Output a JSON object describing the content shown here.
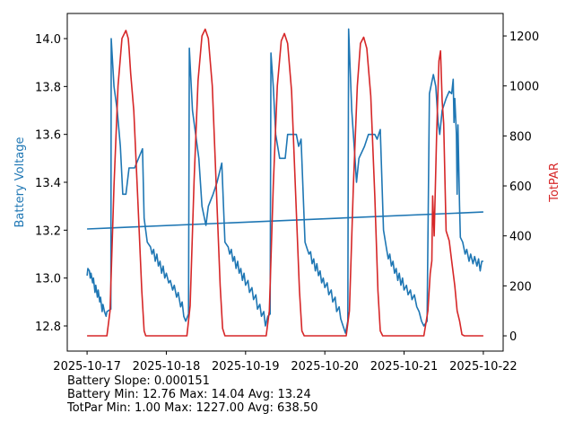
{
  "chart_data": {
    "type": "line",
    "xlabel": "",
    "x_tick_labels": [
      "2025-10-17",
      "2025-10-18",
      "2025-10-19",
      "2025-10-20",
      "2025-10-21",
      "2025-10-22"
    ],
    "x_unit": "days since 2025-10-17",
    "xlim": [
      -0.25,
      5.25
    ],
    "left_axis": {
      "label": "Battery Voltage",
      "color": "#1f77b4",
      "ylim": [
        12.695,
        14.105
      ],
      "ticks": [
        12.8,
        13.0,
        13.2,
        13.4,
        13.6,
        13.8,
        14.0
      ],
      "tick_labels": [
        "12.8",
        "13.0",
        "13.2",
        "13.4",
        "13.6",
        "13.8",
        "14.0"
      ]
    },
    "right_axis": {
      "label": "TotPAR",
      "color": "#d62728",
      "ylim": [
        -61,
        1290
      ],
      "ticks": [
        0,
        200,
        400,
        600,
        800,
        1000,
        1200
      ],
      "tick_labels": [
        "0",
        "200",
        "400",
        "600",
        "800",
        "1000",
        "1200"
      ]
    },
    "series": [
      {
        "name": "Battery Voltage",
        "axis": "left",
        "color": "#1f77b4",
        "points": [
          [
            0,
            13.01
          ],
          [
            0.01,
            13.04
          ],
          [
            0.03,
            13.03
          ],
          [
            0.04,
            13.0
          ],
          [
            0.05,
            13.02
          ],
          [
            0.07,
            12.98
          ],
          [
            0.08,
            13.0
          ],
          [
            0.1,
            12.94
          ],
          [
            0.11,
            12.97
          ],
          [
            0.13,
            12.92
          ],
          [
            0.14,
            12.95
          ],
          [
            0.16,
            12.9
          ],
          [
            0.17,
            12.92
          ],
          [
            0.19,
            12.86
          ],
          [
            0.2,
            12.89
          ],
          [
            0.22,
            12.86
          ],
          [
            0.24,
            12.84
          ],
          [
            0.25,
            12.86
          ],
          [
            0.3,
            12.87
          ],
          [
            0.305,
            14.0
          ],
          [
            0.34,
            13.8
          ],
          [
            0.38,
            13.7
          ],
          [
            0.42,
            13.55
          ],
          [
            0.45,
            13.35
          ],
          [
            0.49,
            13.35
          ],
          [
            0.53,
            13.46
          ],
          [
            0.6,
            13.46
          ],
          [
            0.65,
            13.5
          ],
          [
            0.7,
            13.54
          ],
          [
            0.72,
            13.25
          ],
          [
            0.76,
            13.15
          ],
          [
            0.8,
            13.13
          ],
          [
            0.82,
            13.1
          ],
          [
            0.84,
            13.12
          ],
          [
            0.86,
            13.07
          ],
          [
            0.88,
            13.1
          ],
          [
            0.9,
            13.05
          ],
          [
            0.92,
            13.07
          ],
          [
            0.94,
            13.02
          ],
          [
            0.96,
            13.05
          ],
          [
            0.98,
            13.0
          ],
          [
            1.0,
            13.02
          ],
          [
            1.03,
            12.98
          ],
          [
            1.05,
            12.99
          ],
          [
            1.08,
            12.95
          ],
          [
            1.1,
            12.97
          ],
          [
            1.13,
            12.92
          ],
          [
            1.15,
            12.94
          ],
          [
            1.18,
            12.88
          ],
          [
            1.2,
            12.9
          ],
          [
            1.22,
            12.84
          ],
          [
            1.245,
            12.82
          ],
          [
            1.28,
            12.85
          ],
          [
            1.29,
            13.96
          ],
          [
            1.33,
            13.7
          ],
          [
            1.41,
            13.5
          ],
          [
            1.45,
            13.3
          ],
          [
            1.5,
            13.22
          ],
          [
            1.53,
            13.3
          ],
          [
            1.59,
            13.35
          ],
          [
            1.64,
            13.4
          ],
          [
            1.7,
            13.48
          ],
          [
            1.74,
            13.15
          ],
          [
            1.78,
            13.13
          ],
          [
            1.8,
            13.1
          ],
          [
            1.82,
            13.12
          ],
          [
            1.84,
            13.07
          ],
          [
            1.86,
            13.09
          ],
          [
            1.88,
            13.04
          ],
          [
            1.9,
            13.07
          ],
          [
            1.92,
            13.02
          ],
          [
            1.94,
            13.04
          ],
          [
            1.96,
            12.99
          ],
          [
            1.98,
            13.02
          ],
          [
            2.0,
            12.97
          ],
          [
            2.03,
            12.99
          ],
          [
            2.05,
            12.94
          ],
          [
            2.08,
            12.96
          ],
          [
            2.1,
            12.91
          ],
          [
            2.13,
            12.93
          ],
          [
            2.15,
            12.87
          ],
          [
            2.18,
            12.89
          ],
          [
            2.2,
            12.84
          ],
          [
            2.23,
            12.86
          ],
          [
            2.25,
            12.8
          ],
          [
            2.28,
            12.84
          ],
          [
            2.31,
            12.85
          ],
          [
            2.32,
            13.94
          ],
          [
            2.35,
            13.8
          ],
          [
            2.38,
            13.6
          ],
          [
            2.43,
            13.5
          ],
          [
            2.5,
            13.5
          ],
          [
            2.53,
            13.6
          ],
          [
            2.64,
            13.6
          ],
          [
            2.67,
            13.55
          ],
          [
            2.7,
            13.58
          ],
          [
            2.75,
            13.15
          ],
          [
            2.78,
            13.12
          ],
          [
            2.8,
            13.1
          ],
          [
            2.82,
            13.11
          ],
          [
            2.84,
            13.06
          ],
          [
            2.86,
            13.08
          ],
          [
            2.88,
            13.03
          ],
          [
            2.9,
            13.06
          ],
          [
            2.92,
            13.01
          ],
          [
            2.94,
            13.03
          ],
          [
            2.96,
            12.98
          ],
          [
            2.98,
            13.0
          ],
          [
            3.0,
            12.96
          ],
          [
            3.03,
            12.98
          ],
          [
            3.05,
            12.93
          ],
          [
            3.08,
            12.95
          ],
          [
            3.1,
            12.9
          ],
          [
            3.13,
            12.92
          ],
          [
            3.15,
            12.86
          ],
          [
            3.18,
            12.88
          ],
          [
            3.2,
            12.83
          ],
          [
            3.23,
            12.8
          ],
          [
            3.26,
            12.77
          ],
          [
            3.29,
            12.82
          ],
          [
            3.3,
            14.04
          ],
          [
            3.34,
            13.7
          ],
          [
            3.38,
            13.5
          ],
          [
            3.4,
            13.4
          ],
          [
            3.43,
            13.5
          ],
          [
            3.5,
            13.55
          ],
          [
            3.55,
            13.6
          ],
          [
            3.63,
            13.6
          ],
          [
            3.66,
            13.58
          ],
          [
            3.7,
            13.62
          ],
          [
            3.74,
            13.2
          ],
          [
            3.78,
            13.12
          ],
          [
            3.8,
            13.08
          ],
          [
            3.82,
            13.1
          ],
          [
            3.84,
            13.05
          ],
          [
            3.86,
            13.07
          ],
          [
            3.88,
            13.02
          ],
          [
            3.9,
            13.04
          ],
          [
            3.92,
            12.99
          ],
          [
            3.94,
            13.02
          ],
          [
            3.96,
            12.97
          ],
          [
            3.98,
            13.0
          ],
          [
            4.0,
            12.95
          ],
          [
            4.03,
            12.97
          ],
          [
            4.05,
            12.93
          ],
          [
            4.08,
            12.95
          ],
          [
            4.1,
            12.91
          ],
          [
            4.13,
            12.93
          ],
          [
            4.16,
            12.88
          ],
          [
            4.19,
            12.86
          ],
          [
            4.22,
            12.82
          ],
          [
            4.25,
            12.8
          ],
          [
            4.29,
            12.82
          ],
          [
            4.32,
            13.77
          ],
          [
            4.37,
            13.85
          ],
          [
            4.4,
            13.8
          ],
          [
            4.43,
            13.65
          ],
          [
            4.45,
            13.6
          ],
          [
            4.48,
            13.7
          ],
          [
            4.53,
            13.75
          ],
          [
            4.57,
            13.78
          ],
          [
            4.6,
            13.77
          ],
          [
            4.62,
            13.83
          ],
          [
            4.63,
            13.65
          ],
          [
            4.64,
            13.75
          ],
          [
            4.66,
            13.6
          ],
          [
            4.67,
            13.35
          ],
          [
            4.68,
            13.64
          ],
          [
            4.7,
            13.3
          ],
          [
            4.71,
            13.17
          ],
          [
            4.74,
            13.15
          ],
          [
            4.77,
            13.1
          ],
          [
            4.79,
            13.12
          ],
          [
            4.82,
            13.07
          ],
          [
            4.84,
            13.1
          ],
          [
            4.87,
            13.06
          ],
          [
            4.89,
            13.09
          ],
          [
            4.92,
            13.05
          ],
          [
            4.94,
            13.08
          ],
          [
            4.96,
            13.03
          ],
          [
            4.98,
            13.07
          ],
          [
            5.0,
            13.07
          ]
        ]
      },
      {
        "name": "Battery Trend",
        "axis": "left",
        "color": "#1f77b4",
        "points": [
          [
            0,
            13.205
          ],
          [
            5,
            13.276
          ]
        ]
      },
      {
        "name": "TotPAR",
        "axis": "right",
        "color": "#d62728",
        "points": [
          [
            0,
            0
          ],
          [
            0.25,
            0
          ],
          [
            0.29,
            100
          ],
          [
            0.34,
            600
          ],
          [
            0.39,
            1000
          ],
          [
            0.44,
            1190
          ],
          [
            0.49,
            1222
          ],
          [
            0.52,
            1190
          ],
          [
            0.53,
            1150
          ],
          [
            0.55,
            1050
          ],
          [
            0.59,
            900
          ],
          [
            0.64,
            550
          ],
          [
            0.69,
            180
          ],
          [
            0.72,
            20
          ],
          [
            0.74,
            0
          ],
          [
            1.26,
            0
          ],
          [
            1.3,
            120
          ],
          [
            1.35,
            620
          ],
          [
            1.4,
            1020
          ],
          [
            1.45,
            1200
          ],
          [
            1.49,
            1227
          ],
          [
            1.53,
            1190
          ],
          [
            1.58,
            1000
          ],
          [
            1.63,
            600
          ],
          [
            1.68,
            200
          ],
          [
            1.71,
            30
          ],
          [
            1.74,
            0
          ],
          [
            2.26,
            0
          ],
          [
            2.3,
            100
          ],
          [
            2.35,
            600
          ],
          [
            2.4,
            1000
          ],
          [
            2.45,
            1180
          ],
          [
            2.49,
            1210
          ],
          [
            2.53,
            1170
          ],
          [
            2.58,
            980
          ],
          [
            2.63,
            580
          ],
          [
            2.68,
            180
          ],
          [
            2.71,
            20
          ],
          [
            2.74,
            0
          ],
          [
            3.27,
            0
          ],
          [
            3.31,
            100
          ],
          [
            3.36,
            600
          ],
          [
            3.41,
            1000
          ],
          [
            3.45,
            1170
          ],
          [
            3.49,
            1195
          ],
          [
            3.53,
            1150
          ],
          [
            3.58,
            960
          ],
          [
            3.63,
            560
          ],
          [
            3.67,
            180
          ],
          [
            3.7,
            20
          ],
          [
            3.73,
            0
          ],
          [
            4.25,
            0
          ],
          [
            4.3,
            100
          ],
          [
            4.33,
            250
          ],
          [
            4.35,
            300
          ],
          [
            4.36,
            560
          ],
          [
            4.38,
            400
          ],
          [
            4.41,
            800
          ],
          [
            4.44,
            1100
          ],
          [
            4.46,
            1140
          ],
          [
            4.48,
            940
          ],
          [
            4.5,
            850
          ],
          [
            4.53,
            420
          ],
          [
            4.57,
            380
          ],
          [
            4.6,
            300
          ],
          [
            4.64,
            200
          ],
          [
            4.67,
            100
          ],
          [
            4.7,
            60
          ],
          [
            4.73,
            5
          ],
          [
            4.76,
            0
          ],
          [
            5.0,
            0
          ]
        ]
      }
    ],
    "annotations": [
      "Battery Slope: 0.000151",
      "Battery Min: 12.76 Max: 14.04 Avg: 13.24",
      "TotPar Min: 1.00 Max: 1227.00 Avg: 638.50"
    ]
  }
}
